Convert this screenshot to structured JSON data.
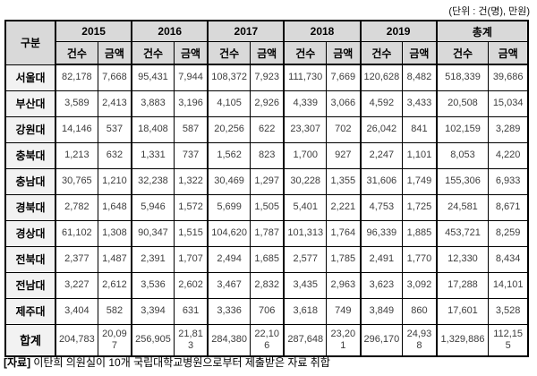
{
  "unit_note": "(단위 : 건(명), 만원)",
  "table": {
    "corner_label": "구분",
    "col_groups": [
      {
        "label": "2015"
      },
      {
        "label": "2016"
      },
      {
        "label": "2017"
      },
      {
        "label": "2018"
      },
      {
        "label": "2019"
      },
      {
        "label": "총계"
      }
    ],
    "sub_headers": [
      "건수",
      "금액"
    ],
    "rows": [
      {
        "label": "서울대",
        "is_total": false,
        "values": [
          "82,178",
          "7,668",
          "95,431",
          "7,944",
          "108,372",
          "7,923",
          "111,730",
          "7,669",
          "120,628",
          "8,482",
          "518,339",
          "39,686"
        ]
      },
      {
        "label": "부산대",
        "is_total": false,
        "values": [
          "3,589",
          "2,413",
          "3,883",
          "3,196",
          "4,105",
          "2,926",
          "4,339",
          "3,066",
          "4,592",
          "3,433",
          "20,508",
          "15,034"
        ]
      },
      {
        "label": "강원대",
        "is_total": false,
        "values": [
          "14,146",
          "537",
          "18,408",
          "587",
          "20,256",
          "622",
          "23,307",
          "702",
          "26,042",
          "841",
          "102,159",
          "3,289"
        ]
      },
      {
        "label": "충북대",
        "is_total": false,
        "values": [
          "1,213",
          "632",
          "1,331",
          "737",
          "1,562",
          "823",
          "1,700",
          "927",
          "2,247",
          "1,101",
          "8,053",
          "4,220"
        ]
      },
      {
        "label": "충남대",
        "is_total": false,
        "values": [
          "30,765",
          "1,210",
          "32,238",
          "1,322",
          "30,469",
          "1,297",
          "30,228",
          "1,355",
          "31,606",
          "1,749",
          "155,306",
          "6,933"
        ]
      },
      {
        "label": "경북대",
        "is_total": false,
        "values": [
          "2,782",
          "1,648",
          "5,946",
          "1,572",
          "5,699",
          "1,505",
          "5,401",
          "2,221",
          "4,753",
          "1,725",
          "24,581",
          "8,671"
        ]
      },
      {
        "label": "경상대",
        "is_total": false,
        "values": [
          "61,102",
          "1,308",
          "90,347",
          "1,515",
          "104,620",
          "1,787",
          "101,313",
          "1,764",
          "96,339",
          "1,885",
          "453,721",
          "8,259"
        ]
      },
      {
        "label": "전북대",
        "is_total": false,
        "values": [
          "2,377",
          "1,487",
          "2,391",
          "1,707",
          "2,494",
          "1,685",
          "2,577",
          "1,785",
          "2,491",
          "1,770",
          "12,330",
          "8,434"
        ]
      },
      {
        "label": "전남대",
        "is_total": false,
        "values": [
          "3,227",
          "2,612",
          "3,536",
          "2,602",
          "3,467",
          "2,832",
          "3,435",
          "2,963",
          "3,623",
          "3,092",
          "17,288",
          "14,101"
        ]
      },
      {
        "label": "제주대",
        "is_total": false,
        "values": [
          "3,404",
          "582",
          "3,394",
          "631",
          "3,336",
          "706",
          "3,618",
          "749",
          "3,849",
          "860",
          "17,601",
          "3,528"
        ]
      },
      {
        "label": "합계",
        "is_total": true,
        "values": [
          "204,783",
          "20,097",
          "256,905",
          "21,813",
          "284,380",
          "22,106",
          "287,648",
          "23,201",
          "296,170",
          "24,938",
          "1,329,886",
          "112,155"
        ]
      }
    ]
  },
  "caption": {
    "prefix": "[자료]",
    "text": "이탄희 의원실이 10개 국립대학교병원으로부터 제출받은 자료 취합"
  },
  "colors": {
    "header_bg": "#d9d9d9",
    "label_bg": "#f2f2f2",
    "border": "#000000",
    "number_text": "#3d3d3d"
  }
}
